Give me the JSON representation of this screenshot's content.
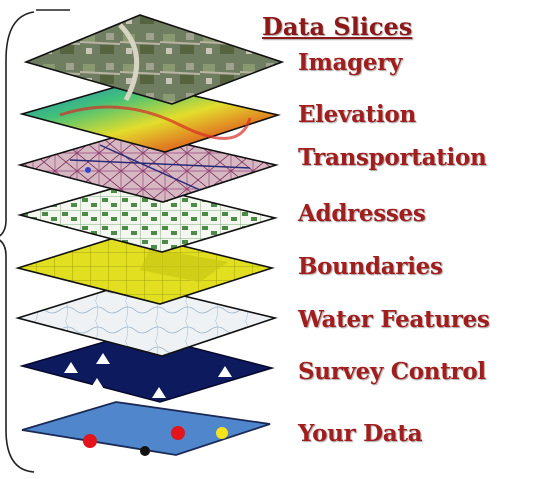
{
  "title": "Data Slices",
  "layers": [
    {
      "label": "Imagery"
    },
    {
      "label": "Elevation"
    },
    {
      "label": "Transportation"
    },
    {
      "label": "Addresses"
    },
    {
      "label": "Boundaries"
    },
    {
      "label": "Water Features"
    },
    {
      "label": "Survey Control"
    },
    {
      "label": "Your Data"
    }
  ],
  "colors": {
    "label_text": "#a31d1d",
    "imagery": "#6b7a5c",
    "elevation": "#2e8bbf",
    "transportation": "#c9a4b5",
    "addresses": "#f4f7ef",
    "boundaries": "#e3e11e",
    "water": "#eef2f4",
    "survey": "#0d1a5e",
    "your_data": "#4f86cc"
  }
}
